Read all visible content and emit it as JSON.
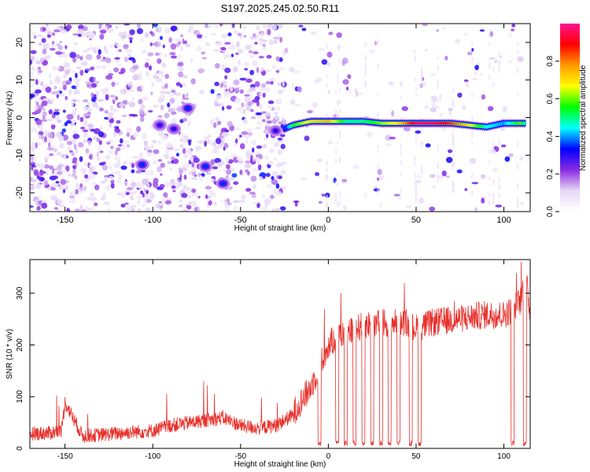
{
  "title": "S197.2025.245.02.50.R11",
  "colors": {
    "trace": "#e8312c",
    "frame": "#000000"
  },
  "chart_data": [
    {
      "type": "heatmap",
      "xlabel": "Height of straight line (km)",
      "ylabel": "Frequency (Hz)",
      "xlim": [
        -170,
        115
      ],
      "ylim": [
        -25,
        25
      ],
      "xticks": [
        -150,
        -100,
        -50,
        0,
        50,
        100
      ],
      "yticks": [
        -20,
        -10,
        0,
        10,
        20
      ],
      "colorbar": {
        "label": "Normalized spectral amplitude",
        "range": [
          0,
          1
        ],
        "ticks": [
          0.0,
          0.2,
          0.4,
          0.6,
          0.8
        ],
        "tick_labels": [
          "0.0",
          "0.2",
          "0.4",
          "0.6",
          "0.8"
        ],
        "colormap": [
          "#ffffff",
          "#e6d8f5",
          "#8a2be2",
          "#0000ff",
          "#00ffff",
          "#00ff00",
          "#ffff00",
          "#ff9900",
          "#ff0000",
          "#ff1493"
        ]
      },
      "ridge": {
        "x": [
          -25,
          -20,
          -10,
          0,
          10,
          20,
          30,
          40,
          50,
          60,
          70,
          80,
          90,
          100,
          110,
          113
        ],
        "frequency": [
          -3,
          -2,
          -1,
          -1,
          -1,
          -1,
          -1.5,
          -1.5,
          -1.5,
          -1.5,
          -1.5,
          -2,
          -2.5,
          -1.5,
          -1.5,
          -1.5
        ],
        "amplitude": [
          0.3,
          0.55,
          0.7,
          0.75,
          0.5,
          0.5,
          0.6,
          0.7,
          0.95,
          0.95,
          0.85,
          0.7,
          0.45,
          0.4,
          0.6,
          0.4
        ]
      },
      "hotspots": [
        {
          "x": -106,
          "frequency": -12.5,
          "amplitude": 0.35
        },
        {
          "x": -96,
          "frequency": -2,
          "amplitude": 0.3
        },
        {
          "x": -88,
          "frequency": -3,
          "amplitude": 0.3
        },
        {
          "x": -80,
          "frequency": 2.5,
          "amplitude": 0.35
        },
        {
          "x": -70,
          "frequency": -13,
          "amplitude": 0.35
        },
        {
          "x": -60,
          "frequency": -17.5,
          "amplitude": 0.35
        },
        {
          "x": -30,
          "frequency": -3.5,
          "amplitude": 0.3
        }
      ]
    },
    {
      "type": "line",
      "xlabel": "Height of straight line (km)",
      "ylabel": "SNR (10 * v/v)",
      "xlim": [
        -170,
        115
      ],
      "ylim": [
        0,
        365
      ],
      "xticks": [
        -150,
        -100,
        -50,
        0,
        50,
        100
      ],
      "yticks": [
        0,
        100,
        200,
        300
      ],
      "series": [
        {
          "name": "SNR",
          "x": [
            -170,
            -160,
            -152,
            -150,
            -140,
            -130,
            -120,
            -110,
            -100,
            -90,
            -80,
            -70,
            -60,
            -50,
            -40,
            -30,
            -20,
            -15,
            -10,
            -5,
            0,
            5,
            10,
            20,
            30,
            40,
            50,
            60,
            70,
            80,
            90,
            100,
            105,
            110,
            112,
            115
          ],
          "y": [
            25,
            25,
            30,
            85,
            20,
            22,
            25,
            28,
            30,
            40,
            45,
            50,
            55,
            40,
            35,
            40,
            60,
            85,
            110,
            150,
            190,
            210,
            215,
            230,
            235,
            235,
            225,
            235,
            240,
            245,
            250,
            250,
            260,
            280,
            330,
            255
          ]
        }
      ],
      "dips": [
        -5,
        5,
        10,
        15,
        20,
        25,
        30,
        35,
        40,
        47,
        52,
        105,
        112
      ]
    }
  ]
}
